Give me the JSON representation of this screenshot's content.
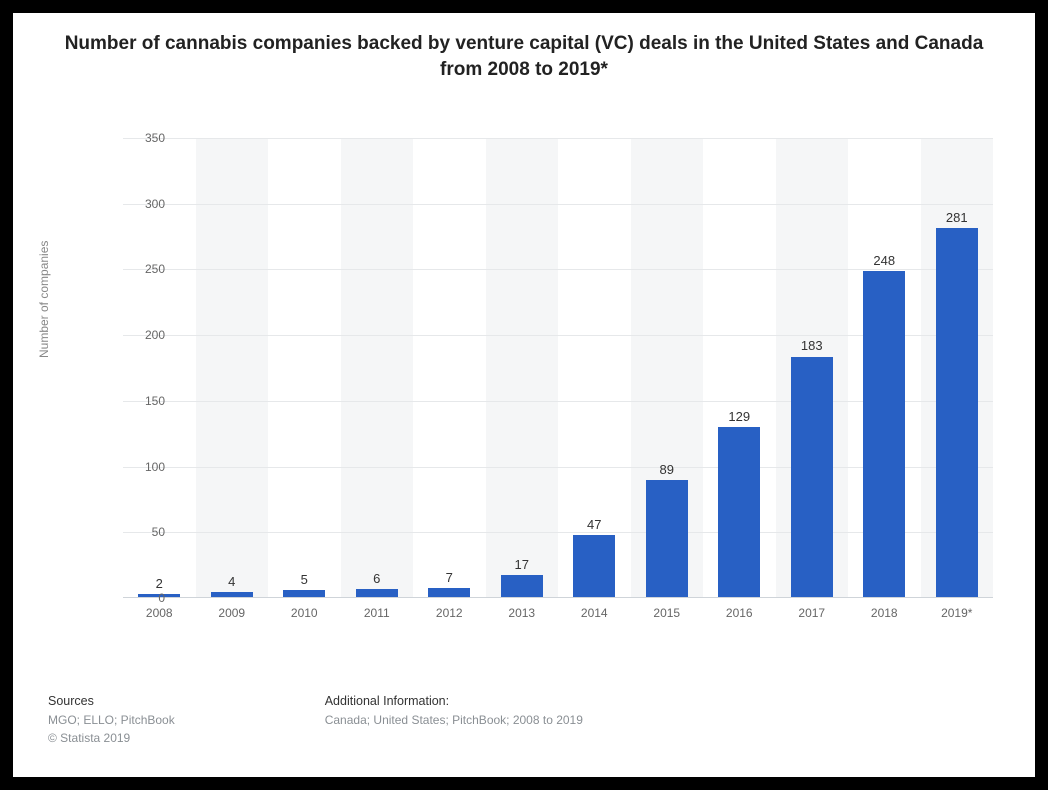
{
  "chart": {
    "type": "bar",
    "title": "Number of cannabis companies backed by venture capital (VC) deals in the United States and Canada from 2008 to 2019*",
    "yaxis_title": "Number of companies",
    "categories": [
      "2008",
      "2009",
      "2010",
      "2011",
      "2012",
      "2013",
      "2014",
      "2015",
      "2016",
      "2017",
      "2018",
      "2019*"
    ],
    "values": [
      2,
      4,
      5,
      6,
      7,
      17,
      47,
      89,
      129,
      183,
      248,
      281
    ],
    "bar_color": "#2860c4",
    "band_color": "#f5f6f7",
    "background_color": "#ffffff",
    "grid_color": "#e6e8ea",
    "axis_line_color": "#cfd4d9",
    "ylim": [
      0,
      350
    ],
    "ytick_step": 50,
    "title_fontsize": 19,
    "title_color": "#222222",
    "tick_fontsize": 12,
    "tick_color": "#666666",
    "value_label_fontsize": 13,
    "value_label_color": "#333333",
    "bar_width_ratio": 0.58
  },
  "footer": {
    "sources_head": "Sources",
    "sources_body": "MGO; ELLO; PitchBook",
    "copyright": "© Statista 2019",
    "info_head": "Additional Information:",
    "info_body": "Canada; United States; PitchBook; 2008 to 2019"
  }
}
